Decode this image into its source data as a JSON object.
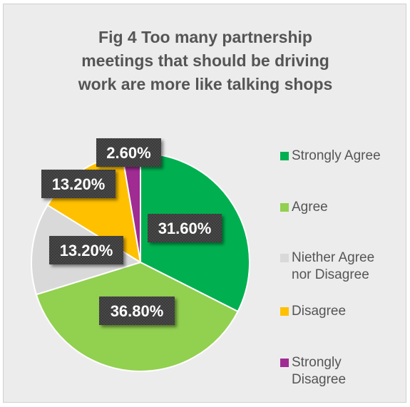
{
  "chart_data": {
    "type": "pie",
    "title": "Fig 4 Too many partnership meetings that should be driving work are more like talking shops",
    "title_lines": [
      "Fig 4 Too many partnership",
      "meetings that should be driving",
      "work are more like talking shops"
    ],
    "legend_position": "right",
    "slices": [
      {
        "name": "Strongly Agree",
        "value": 31.6,
        "label": "31.60%",
        "color": "#00b050",
        "legend_lines": [
          "Strongly Agree"
        ]
      },
      {
        "name": "Agree",
        "value": 36.8,
        "label": "36.80%",
        "color": "#92d050",
        "legend_lines": [
          "Agree"
        ]
      },
      {
        "name": "Niether Agree nor Disagree",
        "value": 13.2,
        "label": "13.20%",
        "color": "#d9d9d9",
        "legend_lines": [
          "Niether Agree",
          "nor Disagree"
        ]
      },
      {
        "name": "Disagree",
        "value": 13.2,
        "label": "13.20%",
        "color": "#ffc000",
        "legend_lines": [
          "Disagree"
        ]
      },
      {
        "name": "Strongly Disagree",
        "value": 2.6,
        "label": "2.60%",
        "color": "#a02b93",
        "legend_lines": [
          "Strongly",
          "Disagree"
        ]
      }
    ]
  }
}
